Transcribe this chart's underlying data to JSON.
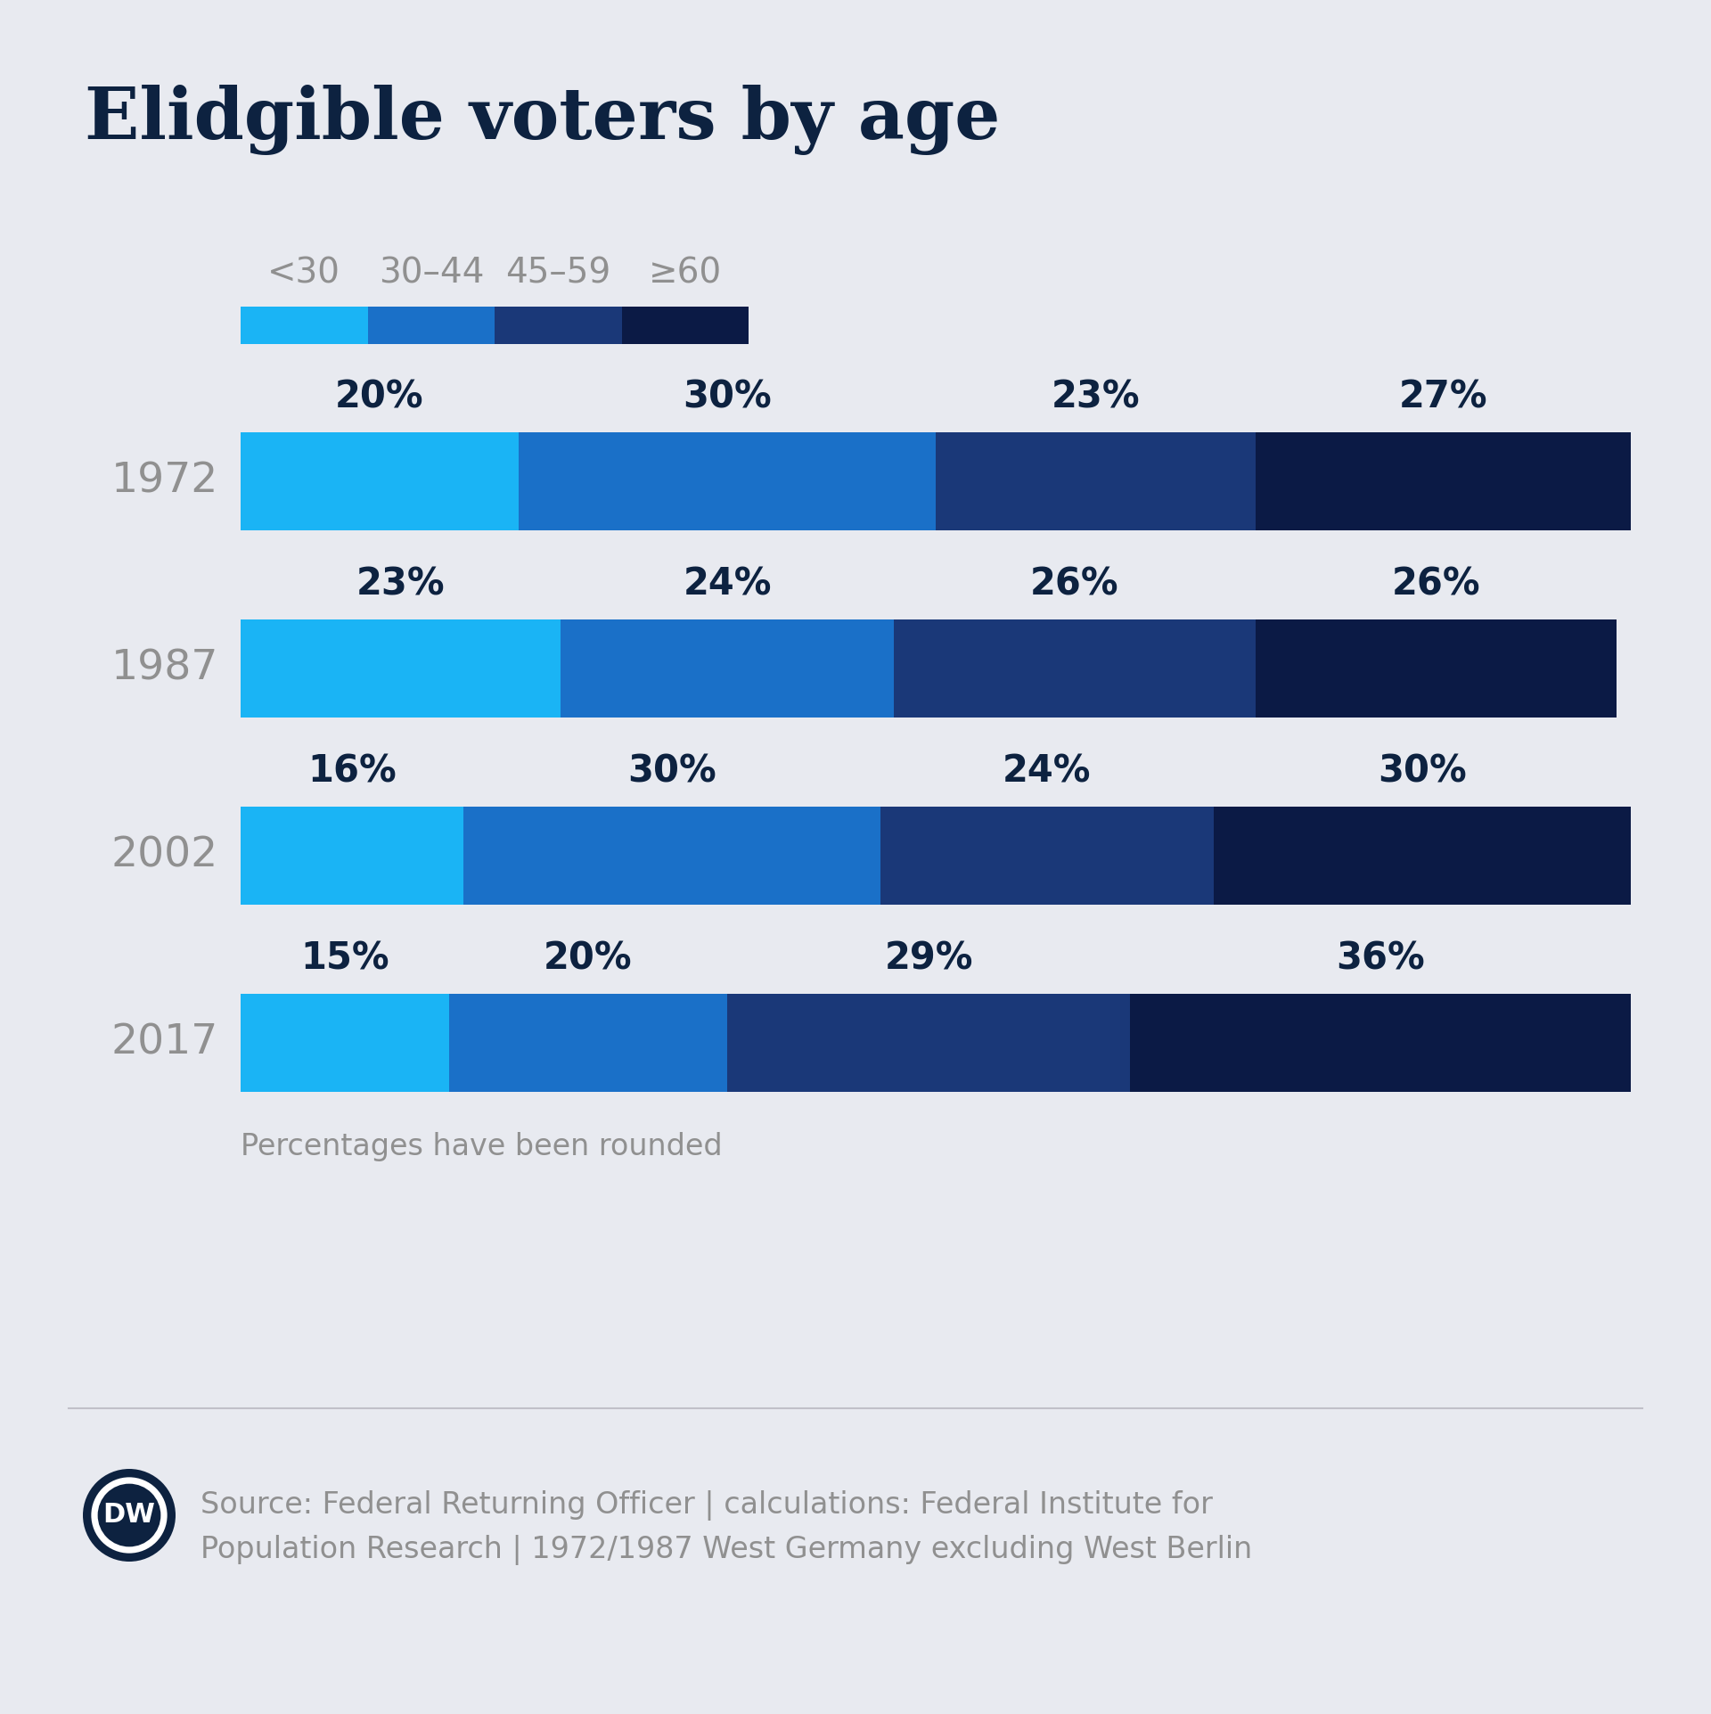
{
  "title": "Elidgible voters by age",
  "background_color": "#E8EAF0",
  "title_color": "#0d2240",
  "years": [
    "1972",
    "1987",
    "2002",
    "2017"
  ],
  "categories": [
    "<30",
    "30–44",
    "45–59",
    "≥60"
  ],
  "values": [
    [
      20,
      30,
      23,
      27
    ],
    [
      23,
      24,
      26,
      26
    ],
    [
      16,
      30,
      24,
      30
    ],
    [
      15,
      20,
      29,
      36
    ]
  ],
  "colors": [
    "#1ab4f5",
    "#1a70c8",
    "#1a3878",
    "#0b1a45"
  ],
  "year_label_color": "#909090",
  "pct_label_color": "#0d2240",
  "footnote": "Percentages have been rounded",
  "source_text": "Source: Federal Returning Officer | calculations: Federal Institute for\nPopulation Research | 1972/1987 West Germany excluding West Berlin",
  "source_color": "#909090",
  "legend_label_color": "#909090",
  "title_fontsize": 58,
  "year_fontsize": 34,
  "pct_fontsize": 30,
  "legend_fontsize": 28,
  "footnote_fontsize": 24,
  "source_fontsize": 24,
  "dw_color": "#0d2240"
}
